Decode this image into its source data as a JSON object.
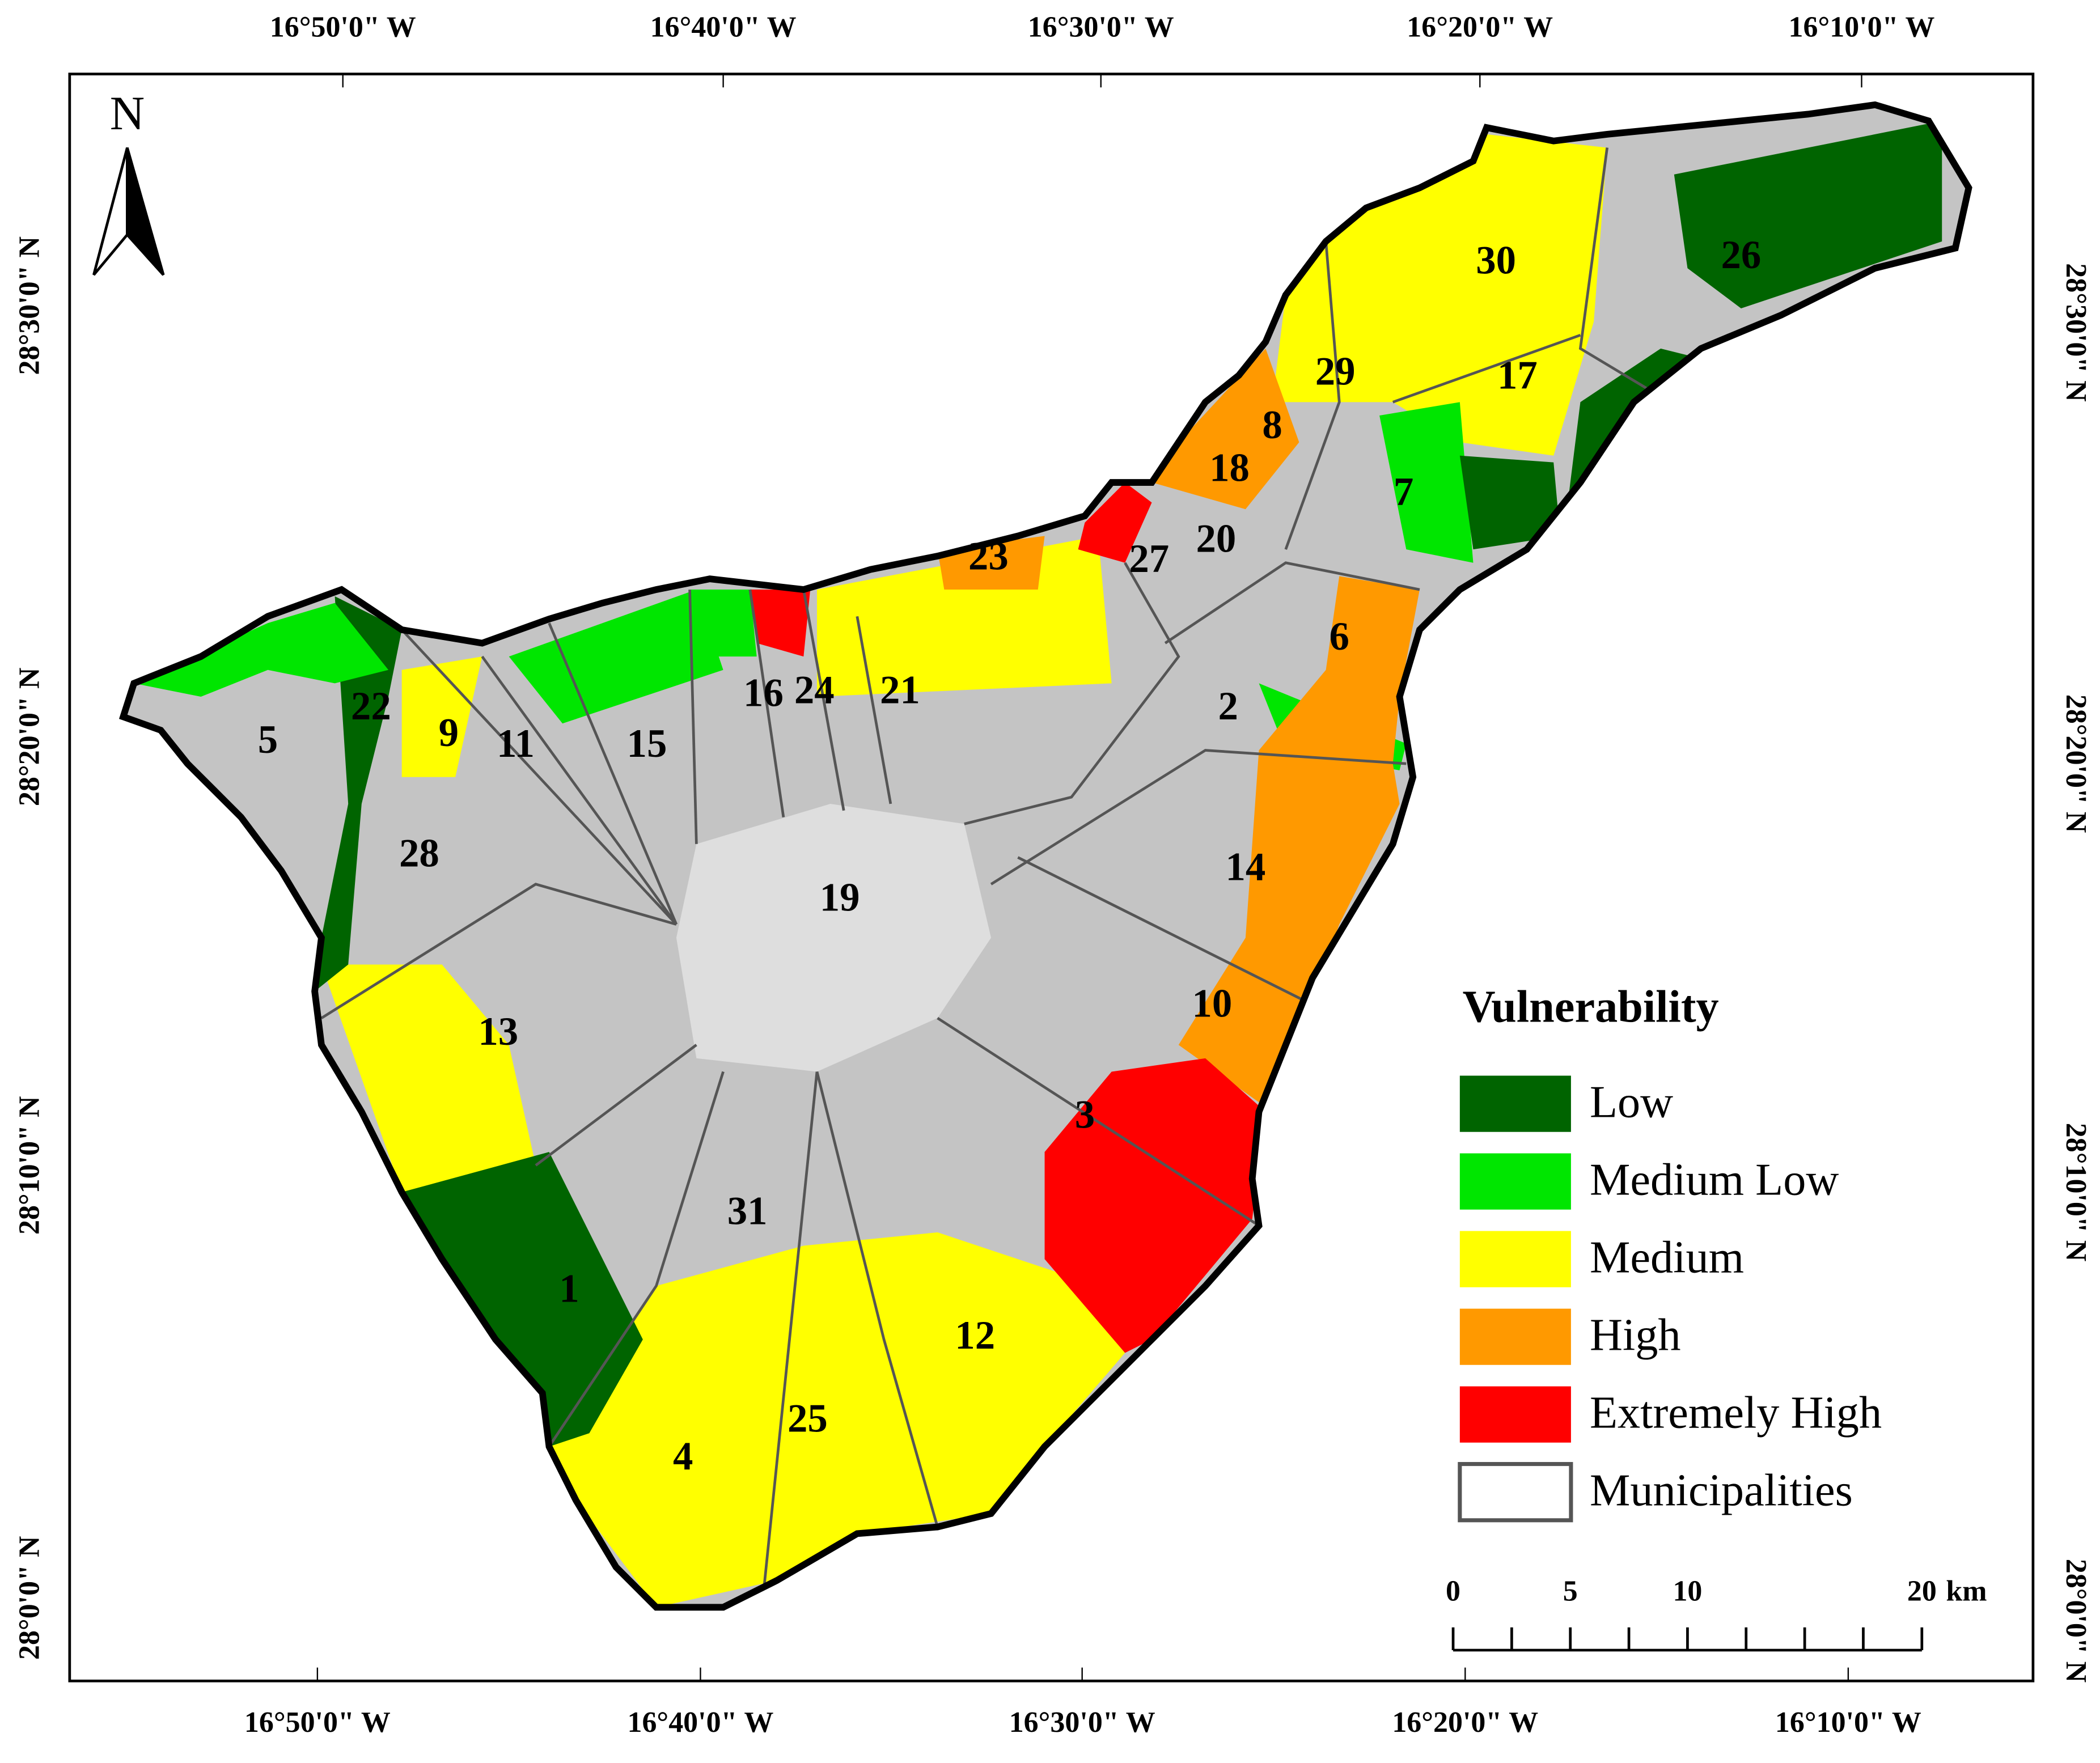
{
  "north_arrow": "N",
  "top_axis": [
    "16°50'0\" W",
    "16°40'0\" W",
    "16°30'0\" W",
    "16°20'0\" W",
    "16°10'0\" W"
  ],
  "bottom_axis": [
    "16°50'0\" W",
    "16°40'0\" W",
    "16°30'0\" W",
    "16°20'0\" W",
    "16°10'0\" W"
  ],
  "left_axis": [
    "28°30'0\" N",
    "28°20'0\" N",
    "28°10'0\" N",
    "28°0'0\" N"
  ],
  "right_axis": [
    "28°30'0\" N",
    "28°20'0\" N",
    "28°10'0\" N",
    "28°0'0\" N"
  ],
  "legend": {
    "title": "Vulnerability",
    "items": [
      {
        "label": "Low",
        "color": "#006400"
      },
      {
        "label": "Medium Low",
        "color": "#00e600"
      },
      {
        "label": "Medium",
        "color": "#ffff00"
      },
      {
        "label": "High",
        "color": "#ff9900"
      },
      {
        "label": "Extremely High",
        "color": "#ff0000"
      },
      {
        "label": "Municipalities",
        "color": "none"
      }
    ]
  },
  "scale_bar": {
    "ticks": [
      0,
      5,
      10,
      20
    ],
    "unit": "km"
  },
  "municipalities": [
    "1",
    "2",
    "3",
    "4",
    "5",
    "6",
    "7",
    "8",
    "9",
    "10",
    "11",
    "12",
    "13",
    "14",
    "15",
    "16",
    "17",
    "18",
    "19",
    "20",
    "21",
    "22",
    "23",
    "24",
    "25",
    "26",
    "27",
    "28",
    "29",
    "30",
    "31"
  ]
}
